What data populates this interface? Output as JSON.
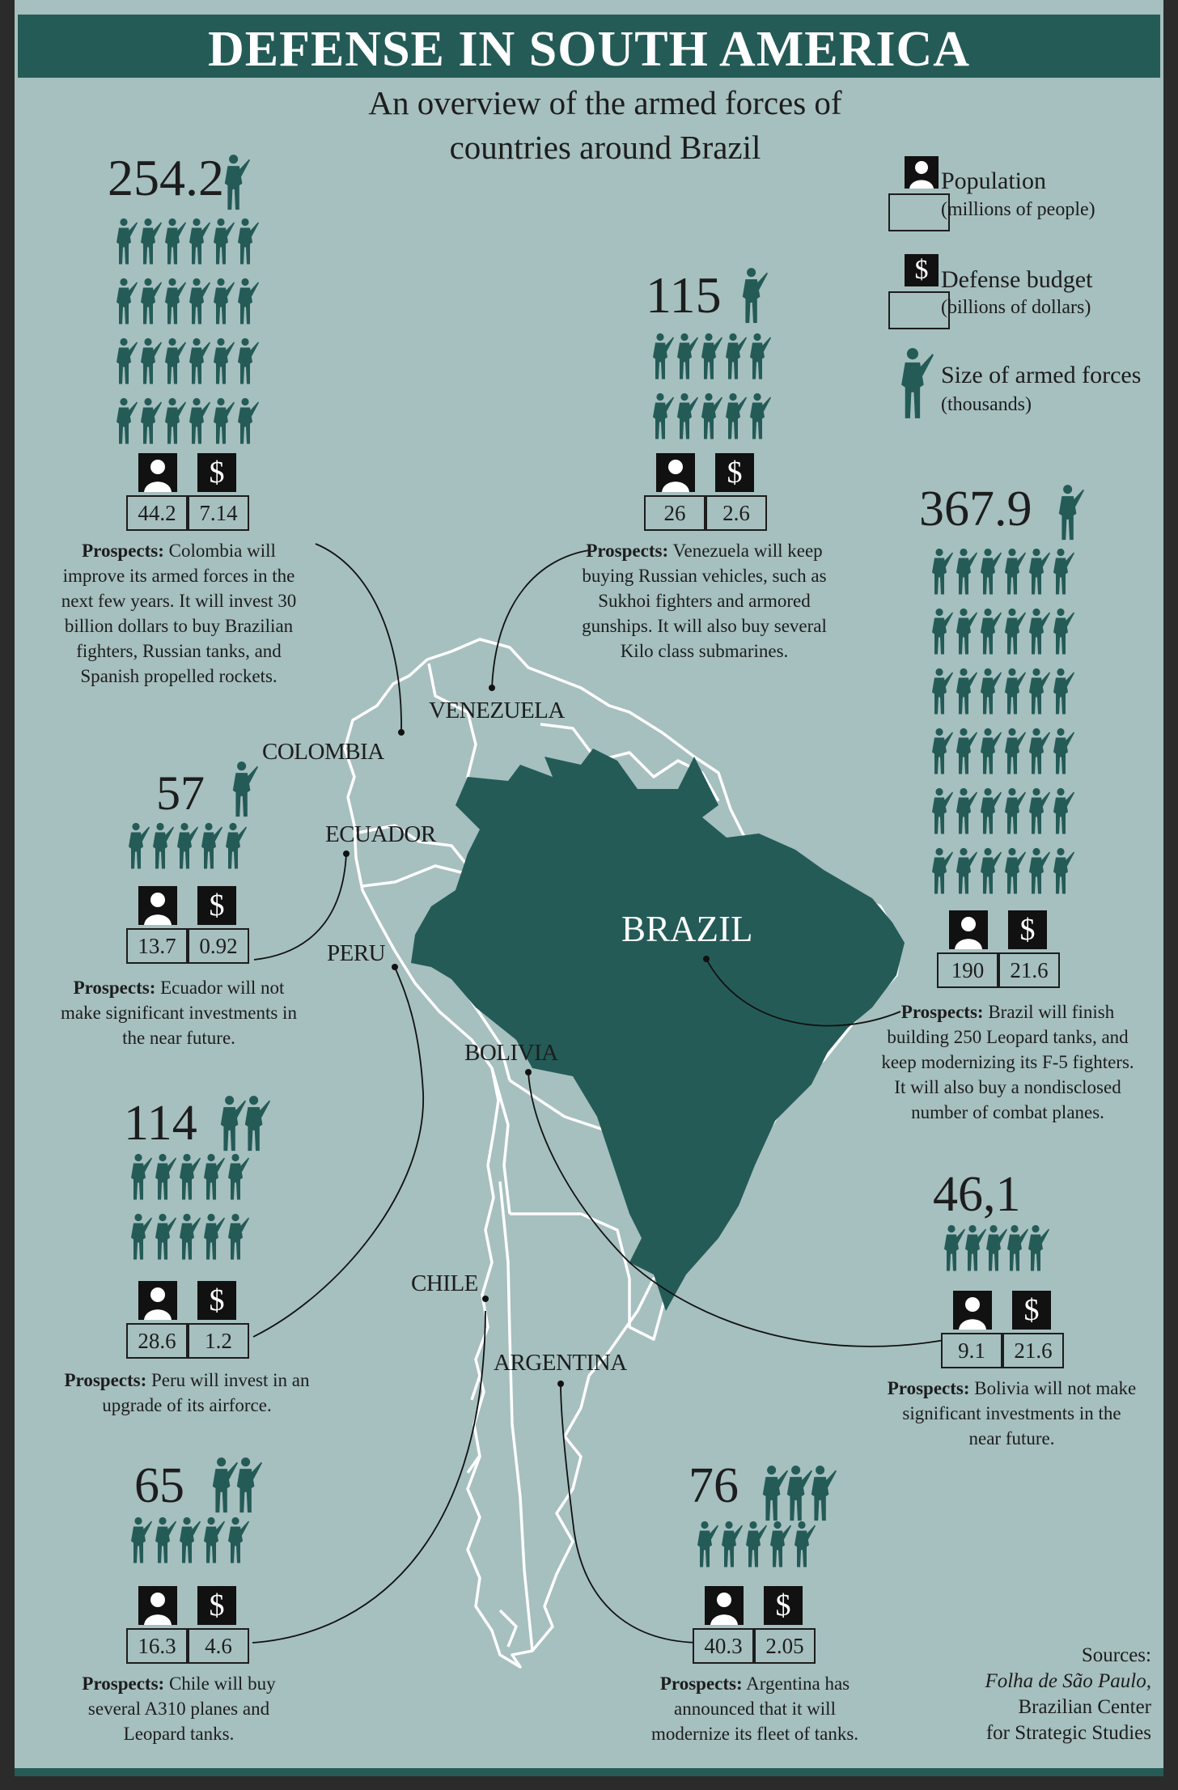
{
  "header": {
    "title": "DEFENSE IN SOUTH AMERICA",
    "subtitle_line1": "An overview of the armed forces of",
    "subtitle_line2": "countries around Brazil"
  },
  "legend": {
    "population_label": "Population",
    "population_unit": "(millions of people)",
    "budget_label": "Defense budget",
    "budget_unit": "(billions of dollars)",
    "forces_label": "Size of armed forces",
    "forces_unit": "(thousands)",
    "person_icon": "person-icon",
    "dollar_icon": "$",
    "soldier_icon": "soldier-icon"
  },
  "map_labels": {
    "venezuela": "VENEZUELA",
    "colombia": "COLOMBIA",
    "ecuador": "ECUADOR",
    "peru": "PERU",
    "brazil": "BRAZIL",
    "bolivia": "BOLIVIA",
    "chile": "CHILE",
    "argentina": "ARGENTINA"
  },
  "countries": {
    "colombia": {
      "armed_forces": "254.2",
      "population": "44.2",
      "budget": "7.14",
      "prospect_label": "Prospects:",
      "prospect_lines": [
        " Colombia will",
        "improve its armed forces in the",
        "next few years. It will invest 30",
        "billion dollars to buy Brazilian",
        "fighters, Russian tanks, and",
        "Spanish propelled rockets."
      ]
    },
    "venezuela": {
      "armed_forces": "115",
      "population": "26",
      "budget": "2.6",
      "prospect_label": "Prospects:",
      "prospect_lines": [
        " Venezuela will keep",
        "buying Russian vehicles, such as",
        "Sukhoi fighters and armored",
        "gunships. It will also buy several",
        "Kilo class submarines."
      ]
    },
    "ecuador": {
      "armed_forces": "57",
      "population": "13.7",
      "budget": "0.92",
      "prospect_label": "Prospects:",
      "prospect_lines": [
        " Ecuador will not",
        "make significant investments in",
        "the near future."
      ]
    },
    "brazil": {
      "armed_forces": "367.9",
      "population": "190",
      "budget": "21.6",
      "prospect_label": "Prospects:",
      "prospect_lines": [
        " Brazil will finish",
        "building 250 Leopard tanks, and",
        "keep modernizing its F-5 fighters.",
        "It will also buy a nondisclosed",
        "number of combat planes."
      ]
    },
    "peru": {
      "armed_forces": "114",
      "population": "28.6",
      "budget": "1.2",
      "prospect_label": "Prospects:",
      "prospect_lines": [
        " Peru will invest in an",
        "upgrade of its airforce."
      ]
    },
    "bolivia": {
      "armed_forces": "46,1",
      "population": "9.1",
      "budget": "21.6",
      "prospect_label": "Prospects:",
      "prospect_lines": [
        " Bolivia will not make",
        "significant investments in the",
        "near future."
      ]
    },
    "chile": {
      "armed_forces": "65",
      "population": "16.3",
      "budget": "4.6",
      "prospect_label": "Prospects:",
      "prospect_lines": [
        " Chile will buy",
        "several A310 planes and",
        "Leopard tanks."
      ]
    },
    "argentina": {
      "armed_forces": "76",
      "population": "40.3",
      "budget": "2.05",
      "prospect_label": "Prospects:",
      "prospect_lines": [
        " Argentina has",
        "announced that it will",
        "modernize its fleet of tanks."
      ]
    }
  },
  "sources": {
    "label": "Sources:",
    "line1": "Folha de São Paulo,",
    "line2": "Brazilian Center",
    "line3": "for Strategic Studies"
  },
  "colors": {
    "background": "#a6bfbf",
    "accent": "#245b57",
    "icon_box": "#111111",
    "text": "#1d1d1d",
    "map_outline": "#ffffff"
  }
}
